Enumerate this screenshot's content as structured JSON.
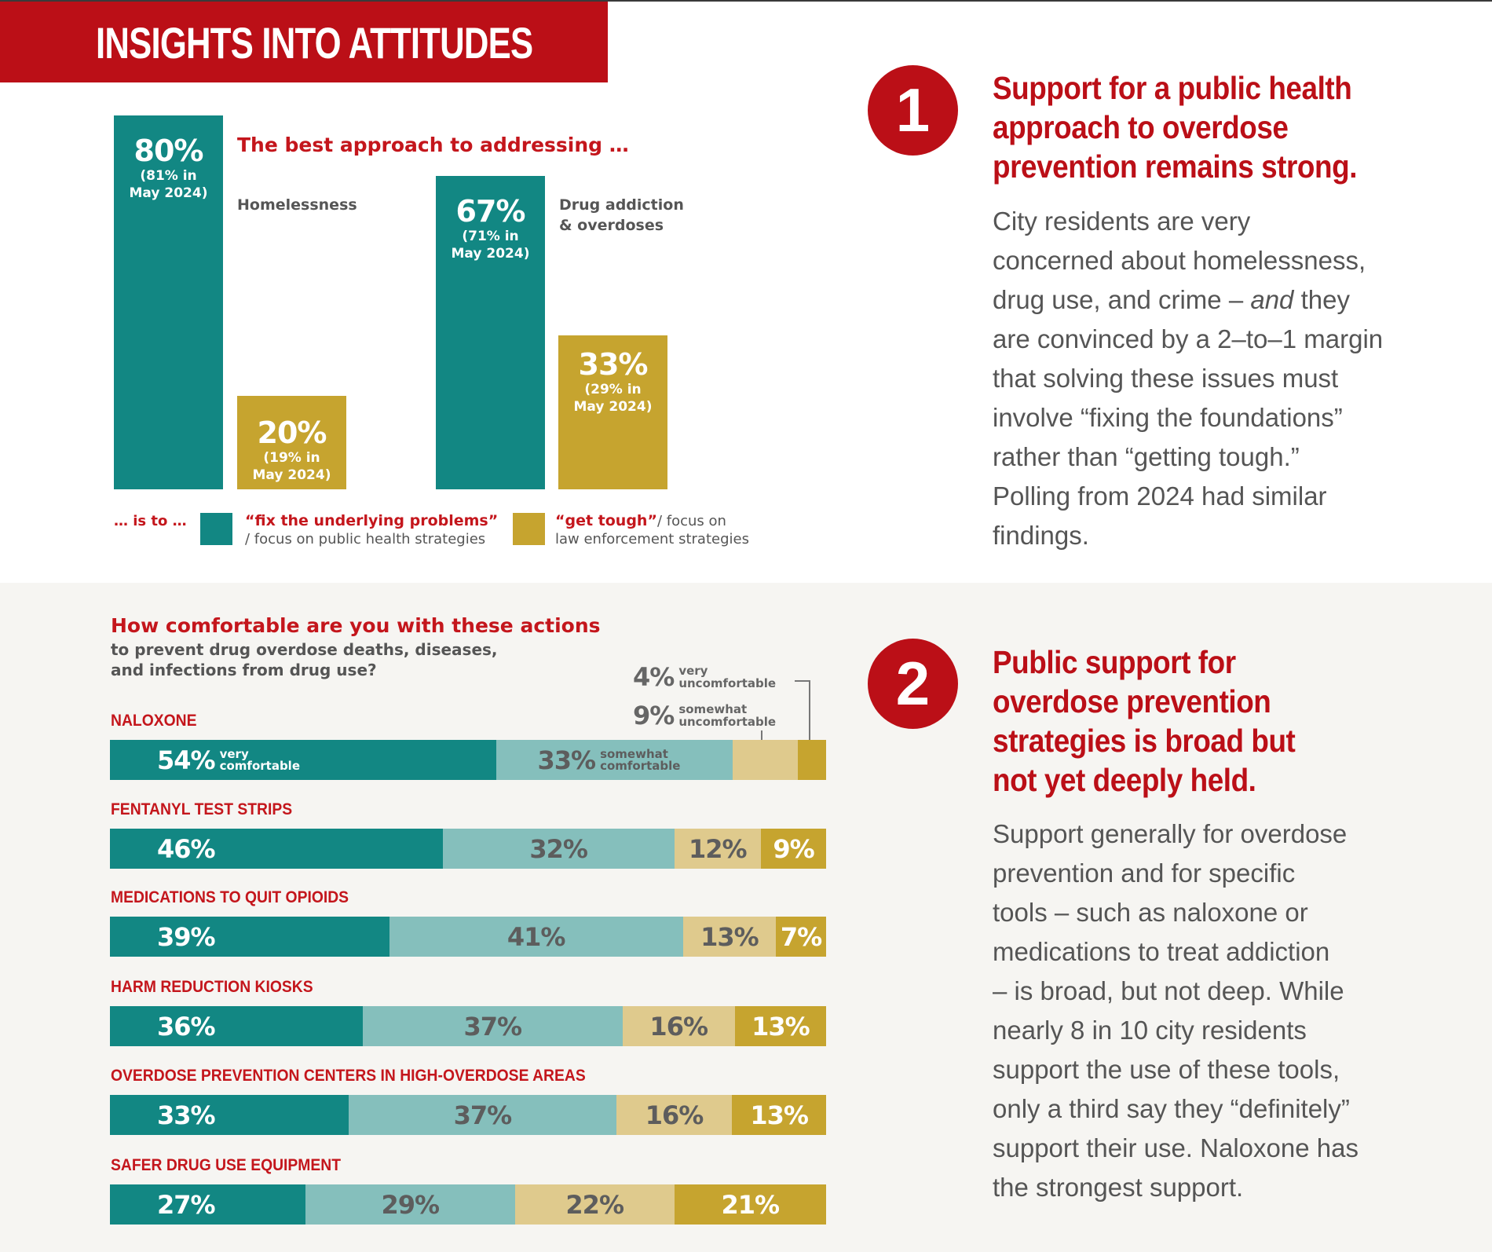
{
  "banner": {
    "title": "INSIGHTS INTO ATTITUDES"
  },
  "colors": {
    "brand_red": "#bb0f17",
    "teal": "#128783",
    "light_teal": "#85bfbc",
    "light_gold": "#dfca8d",
    "gold": "#c6a42f"
  },
  "insights": [
    {
      "number": "1",
      "heading_lines": [
        "Support for a public health",
        "approach to overdose",
        "prevention remains strong."
      ],
      "body_lines": [
        "City residents are very",
        "concerned about homelessness,",
        "drug use, and crime – and they",
        "are convinced by a 2–to–1 margin",
        "that solving these issues must",
        "involve “fixing the foundations”",
        "rather than “getting tough.”",
        "Polling from 2024 had similar",
        "findings."
      ]
    },
    {
      "number": "2",
      "heading_lines": [
        "Public support for",
        "overdose prevention",
        "strategies is broad but",
        "not yet deeply held."
      ],
      "body_lines": [
        "Support generally for overdose",
        "prevention and for specific",
        "tools – such as naloxone or",
        "medications to treat addiction",
        "– is broad, but not deep. While",
        "nearly 8 in 10 city residents",
        "support the use of these tools,",
        "only a third say they “definitely”",
        "support their use. Naloxone has",
        "the strongest support."
      ]
    }
  ],
  "chart_data": [
    {
      "type": "bar",
      "title": "The best approach to addressing …",
      "categories": [
        "Homelessness",
        "Drug addiction & overdoses"
      ],
      "category_lines": [
        [
          "Homelessness"
        ],
        [
          "Drug addiction",
          "& overdoses"
        ]
      ],
      "ylim": [
        0,
        100
      ],
      "series": [
        {
          "name": "fix the underlying problems",
          "values": [
            80,
            67
          ],
          "labels": [
            "80%",
            "67%"
          ],
          "previous_labels": [
            [
              "(81% in",
              "May 2024)"
            ],
            [
              "(71% in",
              "May 2024)"
            ]
          ],
          "previous_values_may_2024": [
            81,
            71
          ]
        },
        {
          "name": "get tough",
          "values": [
            20,
            33
          ],
          "labels": [
            "20%",
            "33%"
          ],
          "previous_labels": [
            [
              "(19% in",
              "May 2024)"
            ],
            [
              "(29% in",
              "May 2024)"
            ]
          ],
          "previous_values_may_2024": [
            19,
            29
          ]
        }
      ],
      "legend": {
        "prefix": "… is to …",
        "items": [
          {
            "emphasis": "“fix the underlying problems”",
            "rest_line1": "",
            "rest_line2": "/ focus on public health strategies"
          },
          {
            "emphasis": "“get tough”",
            "rest_line1": "/ focus on",
            "rest_line2": "law enforcement strategies"
          }
        ],
        "placement": "bottom"
      }
    },
    {
      "type": "bar",
      "orientation": "horizontal-stacked",
      "title": "How comfortable are you with these actions",
      "subtitle_lines": [
        "to prevent drug overdose deaths, diseases,",
        "and infections from drug use?"
      ],
      "series_names": [
        "very comfortable",
        "somewhat comfortable",
        "somewhat uncomfortable",
        "very uncomfortable"
      ],
      "categories": [
        "NALOXONE",
        "FENTANYL TEST STRIPS",
        "MEDICATIONS TO QUIT OPIOIDS",
        "HARM REDUCTION KIOSKS",
        "OVERDOSE PREVENTION CENTERS IN HIGH-OVERDOSE AREAS",
        "SAFER DRUG USE EQUIPMENT"
      ],
      "values": [
        [
          54,
          33,
          9,
          4
        ],
        [
          46,
          32,
          12,
          9
        ],
        [
          39,
          41,
          13,
          7
        ],
        [
          36,
          37,
          16,
          13
        ],
        [
          33,
          37,
          16,
          13
        ],
        [
          27,
          29,
          22,
          21
        ]
      ],
      "show_inline_labels": [
        [
          true,
          true,
          false,
          false
        ],
        [
          true,
          true,
          true,
          true
        ],
        [
          true,
          true,
          true,
          true
        ],
        [
          true,
          true,
          true,
          true
        ],
        [
          true,
          true,
          true,
          true
        ],
        [
          true,
          true,
          true,
          true
        ]
      ],
      "inline_sublabels": [
        [
          "very\ncomfortable",
          "somewhat\ncomfortable"
        ]
      ],
      "callouts": [
        {
          "pct": "4%",
          "line1": "very",
          "line2": "uncomfortable"
        },
        {
          "pct": "9%",
          "line1": "somewhat",
          "line2": "uncomfortable"
        }
      ],
      "xlim": [
        0,
        100
      ]
    }
  ]
}
